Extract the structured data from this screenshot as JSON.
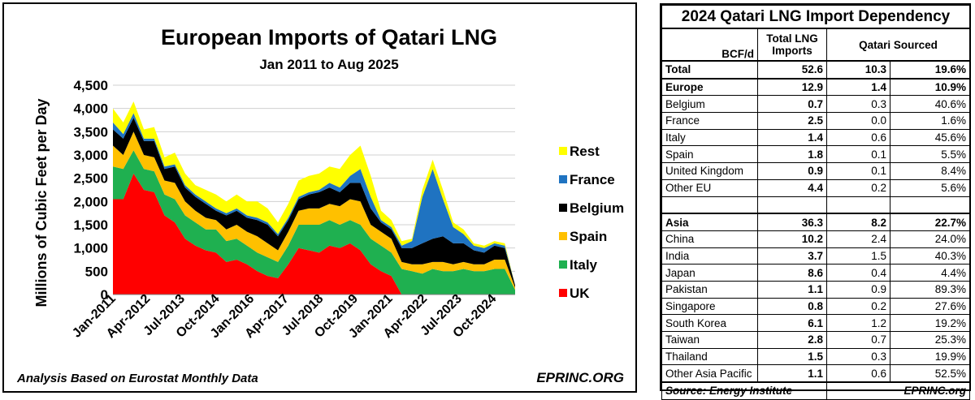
{
  "chart_data": {
    "type": "area",
    "stacked": true,
    "title": "European Imports of Qatari LNG",
    "subtitle": "Jan 2011 to Aug 2025",
    "ylabel": "Millions of Cubic Feet per Day",
    "ylim": [
      0,
      4500
    ],
    "yticks": [
      "0",
      "500",
      "1,000",
      "1,500",
      "2,000",
      "2,500",
      "3,000",
      "3,500",
      "4,000",
      "4,500"
    ],
    "xticks": [
      "Jan-2011",
      "Apr-2012",
      "Jul-2013",
      "Oct-2014",
      "Jan-2016",
      "Apr-2017",
      "Jul-2018",
      "Oct-2019",
      "Jan-2021",
      "Apr-2022",
      "Jul-2023",
      "Oct-2024"
    ],
    "x_start": "Jan-2011",
    "x_end": "Aug-2025",
    "grid": true,
    "legend_position": "right",
    "note": "Analysis Based on Eurostat Monthly Data",
    "credit": "EPRINC.ORG",
    "series_colors": {
      "UK": "#ff0000",
      "Italy": "#1fb050",
      "Spain": "#ffc000",
      "Belgium": "#000000",
      "France": "#1f73c1",
      "Rest": "#ffff00"
    },
    "series": [
      {
        "name": "UK",
        "values": [
          2050,
          2050,
          2600,
          2250,
          2200,
          1700,
          1550,
          1200,
          1050,
          950,
          900,
          700,
          750,
          650,
          500,
          400,
          350,
          650,
          1000,
          950,
          900,
          1050,
          1000,
          1100,
          950,
          650,
          500,
          400,
          0,
          0,
          0,
          0,
          0,
          0,
          0,
          0,
          0,
          0,
          0,
          0
        ]
      },
      {
        "name": "Italy",
        "values": [
          700,
          650,
          500,
          450,
          450,
          450,
          500,
          500,
          500,
          450,
          500,
          450,
          450,
          400,
          400,
          400,
          350,
          400,
          500,
          550,
          600,
          550,
          500,
          500,
          550,
          550,
          550,
          500,
          550,
          500,
          450,
          550,
          500,
          500,
          550,
          500,
          500,
          550,
          550,
          100
        ]
      },
      {
        "name": "Spain",
        "values": [
          450,
          300,
          400,
          300,
          300,
          300,
          350,
          300,
          250,
          250,
          200,
          250,
          300,
          300,
          350,
          300,
          250,
          300,
          300,
          350,
          350,
          350,
          400,
          450,
          500,
          300,
          300,
          300,
          150,
          150,
          200,
          150,
          200,
          150,
          150,
          150,
          150,
          200,
          200,
          50
        ]
      },
      {
        "name": "Belgium",
        "values": [
          350,
          350,
          300,
          300,
          350,
          250,
          350,
          300,
          300,
          300,
          200,
          300,
          300,
          300,
          350,
          400,
          300,
          250,
          250,
          300,
          350,
          350,
          300,
          350,
          400,
          350,
          200,
          200,
          300,
          350,
          450,
          500,
          550,
          450,
          400,
          300,
          250,
          300,
          250,
          50
        ]
      },
      {
        "name": "France",
        "values": [
          150,
          100,
          100,
          50,
          50,
          50,
          50,
          50,
          50,
          50,
          50,
          50,
          50,
          50,
          50,
          50,
          50,
          50,
          50,
          50,
          50,
          100,
          100,
          150,
          300,
          250,
          50,
          50,
          50,
          150,
          1000,
          1500,
          800,
          350,
          200,
          100,
          100,
          50,
          50,
          0
        ]
      },
      {
        "name": "Rest",
        "values": [
          300,
          250,
          250,
          200,
          250,
          200,
          250,
          250,
          200,
          250,
          300,
          250,
          300,
          300,
          350,
          300,
          250,
          300,
          350,
          350,
          350,
          350,
          400,
          450,
          500,
          450,
          200,
          150,
          100,
          50,
          150,
          200,
          200,
          100,
          100,
          50,
          50,
          50,
          50,
          0
        ]
      }
    ]
  },
  "legend": {
    "rest": "Rest",
    "france": "France",
    "belgium": "Belgium",
    "spain": "Spain",
    "italy": "Italy",
    "uk": "UK"
  },
  "table": {
    "title": "2024 Qatari LNG Import Dependency",
    "unit_header": "BCF/d",
    "col_total_line1": "Total LNG",
    "col_total_line2": "Imports",
    "col_qatari": "Qatari Sourced",
    "rows": [
      {
        "name": "Total",
        "total": "52.6",
        "qatari": "10.3",
        "share": "19.6%",
        "bold": true,
        "thick": true
      },
      {
        "name": "Europe",
        "total": "12.9",
        "qatari": "1.4",
        "share": "10.9%",
        "bold": true,
        "thick": true
      },
      {
        "name": "Belgium",
        "total": "0.7",
        "qatari": "0.3",
        "share": "40.6%"
      },
      {
        "name": "France",
        "total": "2.5",
        "qatari": "0.0",
        "share": "1.6%"
      },
      {
        "name": "Italy",
        "total": "1.4",
        "qatari": "0.6",
        "share": "45.6%"
      },
      {
        "name": "Spain",
        "total": "1.8",
        "qatari": "0.1",
        "share": "5.5%"
      },
      {
        "name": "United Kingdom",
        "total": "0.9",
        "qatari": "0.1",
        "share": "8.4%"
      },
      {
        "name": "Other EU",
        "total": "4.4",
        "qatari": "0.2",
        "share": "5.6%"
      },
      {
        "name": "",
        "total": "",
        "qatari": "",
        "share": ""
      },
      {
        "name": "Asia",
        "total": "36.3",
        "qatari": "8.2",
        "share": "22.7%",
        "bold": true,
        "thick": true
      },
      {
        "name": "China",
        "total": "10.2",
        "qatari": "2.4",
        "share": "24.0%"
      },
      {
        "name": "India",
        "total": "3.7",
        "qatari": "1.5",
        "share": "40.3%"
      },
      {
        "name": "Japan",
        "total": "8.6",
        "qatari": "0.4",
        "share": "4.4%"
      },
      {
        "name": "Pakistan",
        "total": "1.1",
        "qatari": "0.9",
        "share": "89.3%"
      },
      {
        "name": "Singapore",
        "total": "0.8",
        "qatari": "0.2",
        "share": "27.6%"
      },
      {
        "name": "South Korea",
        "total": "6.1",
        "qatari": "1.2",
        "share": "19.2%"
      },
      {
        "name": "Taiwan",
        "total": "2.8",
        "qatari": "0.7",
        "share": "25.3%"
      },
      {
        "name": "Thailand",
        "total": "1.5",
        "qatari": "0.3",
        "share": "19.9%"
      },
      {
        "name": "Other Asia Pacific",
        "total": "1.1",
        "qatari": "0.6",
        "share": "52.5%"
      }
    ],
    "source": "Source: Energy Institute",
    "credit": "EPRINC.org"
  }
}
